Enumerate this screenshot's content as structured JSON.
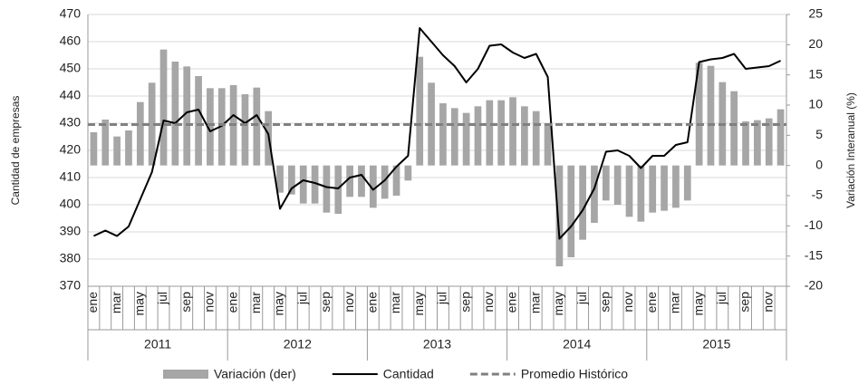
{
  "chart_data": {
    "type": "combo",
    "categories": [
      "ene",
      null,
      "mar",
      null,
      "may",
      null,
      "jul",
      null,
      "sep",
      null,
      "nov",
      null,
      "ene",
      null,
      "mar",
      null,
      "may",
      null,
      "jul",
      null,
      "sep",
      null,
      "nov",
      null,
      "ene",
      null,
      "mar",
      null,
      "may",
      null,
      "jul",
      null,
      "sep",
      null,
      "nov",
      null,
      "ene",
      null,
      "mar",
      null,
      "may",
      null,
      "jul",
      null,
      "sep",
      null,
      "nov",
      null,
      "ene",
      null,
      "mar",
      null,
      "may",
      null,
      "jul",
      null,
      "sep",
      null,
      "nov",
      null
    ],
    "years": [
      "2011",
      "2012",
      "2013",
      "2014",
      "2015"
    ],
    "ylabel": "Cantidad de empresas",
    "y2label": "Variación Interanual (%)",
    "ylim": [
      370,
      470
    ],
    "yticks": [
      370,
      380,
      390,
      400,
      410,
      420,
      430,
      440,
      450,
      460,
      470
    ],
    "y2lim": [
      -20,
      25
    ],
    "y2ticks": [
      -20,
      -15,
      -10,
      -5,
      0,
      5,
      10,
      15,
      20,
      25
    ],
    "grid": true,
    "series": [
      {
        "name": "Variación (der)",
        "type": "bar",
        "axis": "y2",
        "color": "#a6a6a6",
        "values": [
          5.5,
          7.6,
          4.8,
          5.8,
          10.5,
          13.7,
          19.2,
          17.2,
          16.4,
          14.8,
          12.8,
          12.8,
          13.3,
          11.8,
          12.9,
          9,
          -4.5,
          -4.8,
          -6.3,
          -6.3,
          -7.8,
          -8,
          -5.2,
          -5.2,
          -7,
          -5.5,
          -5,
          -2.5,
          18,
          13.7,
          10.3,
          9.5,
          8.7,
          9.8,
          10.8,
          10.8,
          11.3,
          9.8,
          9,
          7,
          -16.7,
          -15.2,
          -12.3,
          -9.5,
          -5.8,
          -6.5,
          -8.5,
          -9.3,
          -7.8,
          -7.5,
          -7,
          -5.8,
          17,
          16.5,
          13.8,
          12.3,
          7.3,
          7.5,
          7.8,
          9.3
        ]
      },
      {
        "name": "Cantidad",
        "type": "line",
        "color": "#000000",
        "values": [
          388.5,
          390.5,
          388.5,
          392,
          402,
          412,
          431,
          430,
          434,
          435,
          427,
          429,
          433,
          430,
          433,
          426,
          398.5,
          406,
          409,
          408,
          406.5,
          406,
          410,
          411,
          405.5,
          409,
          414,
          418,
          465,
          460,
          455,
          451,
          445,
          450,
          458.5,
          459,
          456,
          454,
          455.5,
          447,
          387.5,
          392,
          398,
          406,
          419.5,
          420,
          418,
          413.5,
          418,
          418,
          422,
          423,
          452.5,
          453.5,
          454,
          455.5,
          450,
          450.5,
          451,
          453
        ]
      },
      {
        "name": "Promedio Histórico",
        "type": "hline",
        "color": "#808080",
        "value": 429.5
      }
    ]
  }
}
